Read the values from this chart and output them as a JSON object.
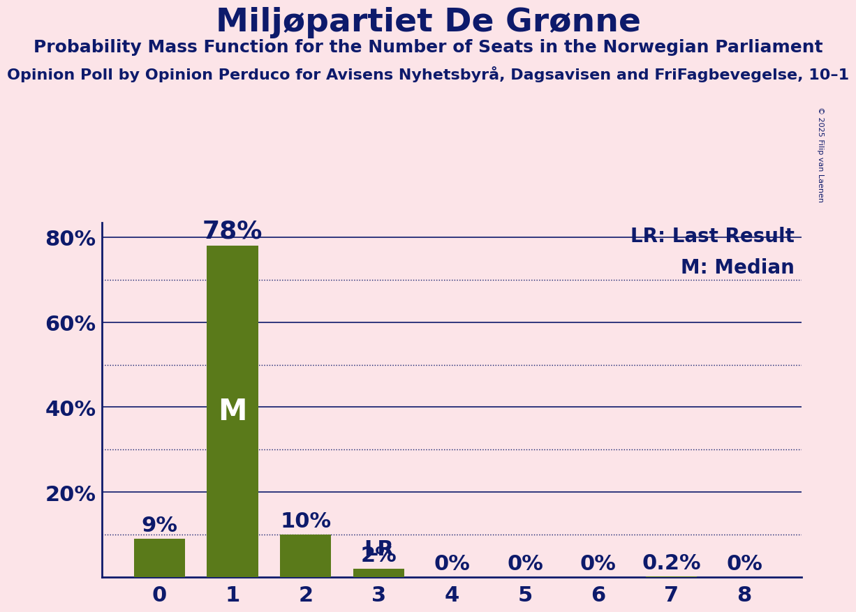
{
  "title": "Miljøpartiet De Grønne",
  "subtitle": "Probability Mass Function for the Number of Seats in the Norwegian Parliament",
  "sub_subtitle": "Opinion Poll by Opinion Perduco for Avisens Nyhetsbyrå, Dagsavisen and FriFagbevegelse, 10–1",
  "copyright": "© 2025 Filip van Laenen",
  "categories": [
    0,
    1,
    2,
    3,
    4,
    5,
    6,
    7,
    8
  ],
  "values": [
    0.09,
    0.78,
    0.1,
    0.02,
    0.0,
    0.0,
    0.0,
    0.002,
    0.0
  ],
  "bar_color": "#5a7a1a",
  "background_color": "#fce4e8",
  "text_color_dark": "#0d1a6b",
  "median_bar": 1,
  "lr_bar": 3,
  "ylim": [
    0,
    0.835
  ],
  "yticks": [
    0.0,
    0.2,
    0.4,
    0.6,
    0.8
  ],
  "dotted_lines": [
    0.1,
    0.3,
    0.5,
    0.7
  ],
  "legend_lr": "LR: Last Result",
  "legend_m": "M: Median",
  "value_labels_simple": [
    "9%",
    "78%",
    "10%",
    "2%",
    "0%",
    "0%",
    "0%",
    "0.2%",
    "0%"
  ]
}
